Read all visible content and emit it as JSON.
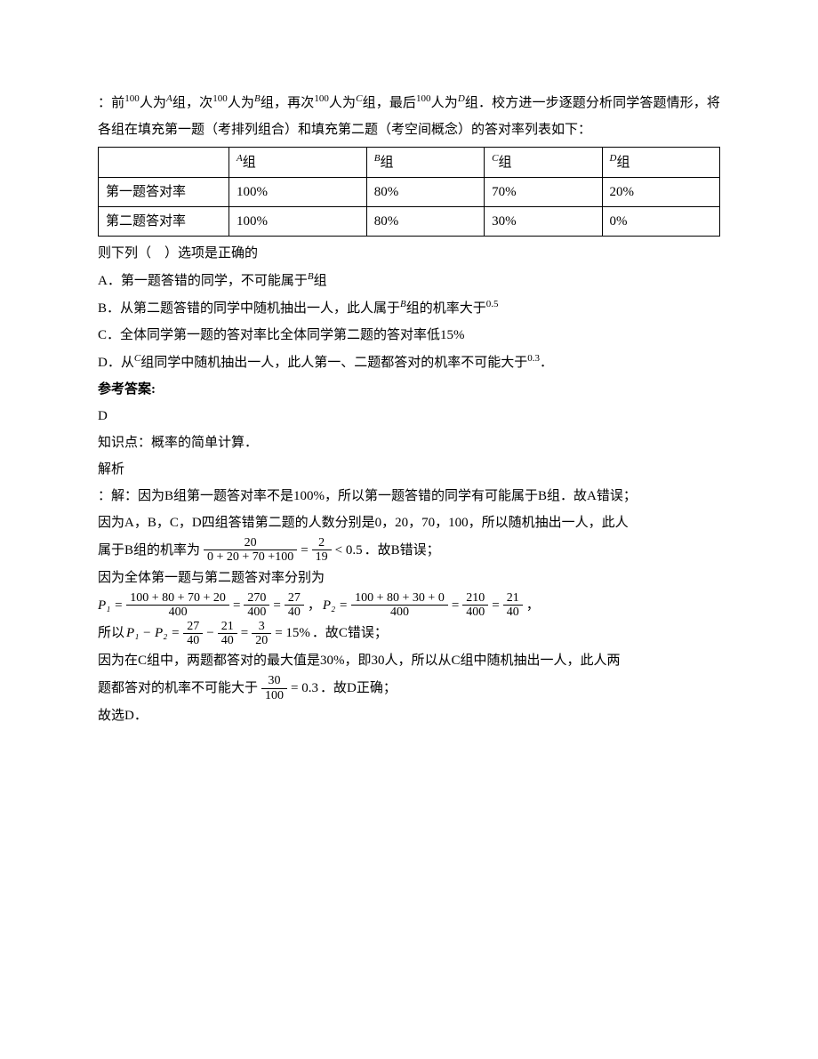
{
  "intro": {
    "line1_a": "：前",
    "n1": "100",
    "line1_b": "人为",
    "gA": "A",
    "line1_c": "组，次",
    "n2": "100",
    "line1_d": "人为",
    "gB": "B",
    "line1_e": "组，再次",
    "n3": "100",
    "line1_f": "人为",
    "gC": "C",
    "line1_g": "组，最后",
    "n4": "100",
    "line1_h": "人为",
    "gD": "D",
    "line1_i": "组．校方进一步逐题分析同学答题情形，将各组在填充第一题（考排列组合）和填充第二题（考空间概念）的答对率列表如下："
  },
  "table": {
    "h1": "A",
    "h1s": "组",
    "h2": "B",
    "h2s": "组",
    "h3": "C",
    "h3s": "组",
    "h4": "D",
    "h4s": "组",
    "r1label": "第一题答对率",
    "r1c1": "100%",
    "r1c2": "80%",
    "r1c3": "70%",
    "r1c4": "20%",
    "r2label": "第二题答对率",
    "r2c1": "100%",
    "r2c2": "80%",
    "r2c3": "30%",
    "r2c4": "0%"
  },
  "question_stem": "则下列（　）选项是正确的",
  "opts": {
    "A_pre": "A．第一题答错的同学，不可能属于",
    "A_g": "B",
    "A_post": "组",
    "B_pre": "B．从第二题答错的同学中随机抽出一人，此人属于",
    "B_g": "B",
    "B_mid": "组的机率大于",
    "B_val": "0.5",
    "C": "C．全体同学第一题的答对率比全体同学第二题的答对率低15%",
    "D_pre": "D．从",
    "D_g": "C",
    "D_mid": "组同学中随机抽出一人，此人第一、二题都答对的机率不可能大于",
    "D_val": "0.3",
    "D_post": "．"
  },
  "ref": "参考答案:",
  "ans": "D",
  "kp": "知识点：概率的简单计算．",
  "sol_title": "解析",
  "sol_A": "：解：因为B组第一题答对率不是100%，所以第一题答错的同学有可能属于B组．故A错误；",
  "sol_B1": "因为A，B，C，D四组答错第二题的人数分别是0，20，70，100，所以随机抽出一人，此人",
  "sol_B2_pre": "属于B组的机率为",
  "sol_B_frac_num": "20",
  "sol_B_frac_den": "0 + 20 + 70 +100",
  "sol_B_eq": " = ",
  "sol_B_frac2_num": "2",
  "sol_B_frac2_den": "19",
  "sol_B_lt": " < 0.5",
  "sol_B_post": "．故B错误；",
  "sol_C1": "因为全体第一题与第二题答对率分别为",
  "sol_P1_label": "P₁ = ",
  "sol_P1_num1": "100 + 80 + 70 + 20",
  "sol_P1_den1": "400",
  "sol_P1_num2": "270",
  "sol_P1_den2": "400",
  "sol_P1_num3": "27",
  "sol_P1_den3": "40",
  "sol_P2_label": "P₂ = ",
  "sol_P2_num1": "100 + 80 + 30 + 0",
  "sol_P2_den1": "400",
  "sol_P2_num2": "210",
  "sol_P2_den2": "400",
  "sol_P2_num3": "21",
  "sol_P2_den3": "40",
  "sol_C_comma": "，",
  "sol_C_so": "所以",
  "sol_C_diff_label": "P₁ − P₂ = ",
  "sol_C_d1n": "27",
  "sol_C_d1d": "40",
  "sol_C_minus": " − ",
  "sol_C_d2n": "21",
  "sol_C_d2d": "40",
  "sol_C_d3n": "3",
  "sol_C_d3d": "20",
  "sol_C_res": " = 15%",
  "sol_C_post": "．故C错误；",
  "sol_D1": "因为在C组中，两题都答对的最大值是30%，即30人，所以从C组中随机抽出一人，此人两",
  "sol_D2_pre": "题都答对的机率不可能大于",
  "sol_D_frac_num": "30",
  "sol_D_frac_den": "100",
  "sol_D_eq": " = 0.3",
  "sol_D_post": "．故D正确；",
  "final": "故选D．"
}
